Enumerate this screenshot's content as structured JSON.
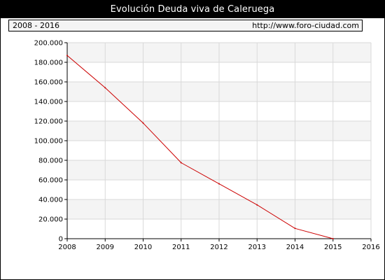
{
  "title": "Evolución Deuda viva de Caleruega",
  "period_label": "2008 - 2016",
  "source_url": "http://www.foro-ciudad.com",
  "colors": {
    "title_bg": "#000000",
    "title_fg": "#ffffff",
    "line": "#cc0000",
    "grid": "#d9d9d9",
    "band": "#f4f4f4",
    "axis": "#000000"
  },
  "chart_data": {
    "type": "line",
    "title": "",
    "xlabel": "",
    "ylabel": "",
    "x": [
      2008,
      2009,
      2010,
      2011,
      2012,
      2013,
      2014,
      2015
    ],
    "series": [
      {
        "values": [
          187000,
          154000,
          118000,
          77500,
          56000,
          34500,
          10500,
          0
        ]
      }
    ],
    "xlim": [
      2008,
      2016
    ],
    "ylim": [
      0,
      200000
    ],
    "x_ticks": [
      "2008",
      "2009",
      "2010",
      "2011",
      "2012",
      "2013",
      "2014",
      "2015",
      "2016"
    ],
    "y_ticks": [
      "0",
      "20.000",
      "40.000",
      "60.000",
      "80.000",
      "100.000",
      "120.000",
      "140.000",
      "160.000",
      "180.000",
      "200.000"
    ],
    "grid": true,
    "legend": "none"
  }
}
